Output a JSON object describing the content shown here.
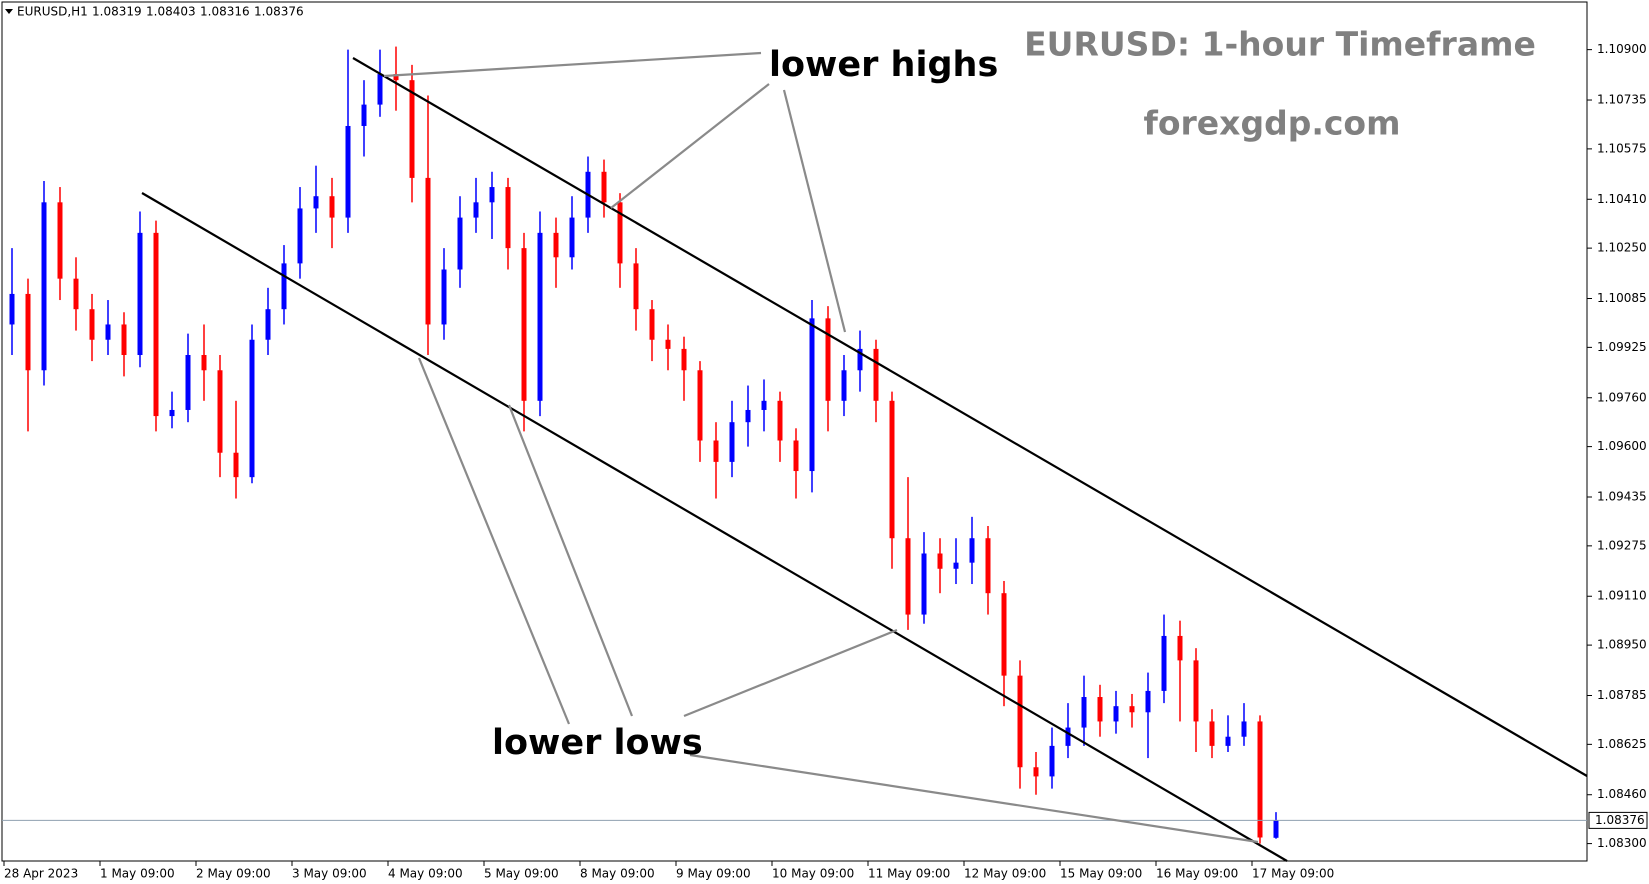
{
  "chart_data": {
    "type": "candlestick",
    "symbol": "EURUSD,H1",
    "title": "EURUSD: 1-hour Timeframe",
    "subtitle": "forexgdp.com",
    "annotations": [
      "lower highs",
      "lower lows"
    ],
    "categories": [
      "28 Apr 2023",
      null,
      null,
      null,
      null,
      null,
      "1 May 09:00",
      null,
      null,
      null,
      null,
      null,
      "2 May 09:00",
      null,
      null,
      null,
      null,
      null,
      "3 May 09:00",
      null,
      null,
      null,
      null,
      null,
      "4 May 09:00",
      null,
      null,
      null,
      null,
      null,
      "5 May 09:00",
      null,
      null,
      null,
      null,
      null,
      "8 May 09:00",
      null,
      null,
      null,
      null,
      null,
      "9 May 09:00",
      null,
      null,
      null,
      null,
      null,
      "10 May 09:00",
      null,
      null,
      null,
      null,
      null,
      "11 May 09:00",
      null,
      null,
      null,
      null,
      null,
      "12 May 09:00",
      null,
      null,
      null,
      null,
      null,
      "15 May 09:00",
      null,
      null,
      null,
      null,
      null,
      "16 May 09:00",
      null,
      null,
      null,
      null,
      null,
      "17 May 09:00",
      null
    ],
    "open": [
      1.1,
      1.101,
      1.0985,
      1.104,
      1.1015,
      1.1005,
      1.0995,
      1.1,
      1.099,
      1.103,
      1.097,
      1.0972,
      1.099,
      1.0985,
      1.0958,
      1.095,
      1.0995,
      1.1005,
      1.102,
      1.1038,
      1.1042,
      1.1035,
      1.1065,
      1.1072,
      1.1082,
      1.108,
      1.1048,
      1.1,
      1.1018,
      1.1035,
      1.104,
      1.1045,
      1.1025,
      1.0975,
      1.103,
      1.1022,
      1.1035,
      1.105,
      1.104,
      1.102,
      1.1005,
      1.0995,
      1.0992,
      1.0985,
      1.0962,
      1.0955,
      1.0968,
      1.0972,
      1.0975,
      1.0962,
      1.0952,
      1.1002,
      1.0975,
      1.0985,
      1.0992,
      1.0975,
      1.093,
      1.0905,
      1.0925,
      1.092,
      1.0922,
      1.093,
      1.0912,
      1.0885,
      1.0855,
      1.0852,
      1.0862,
      1.0868,
      1.0878,
      1.087,
      1.0875,
      1.0873,
      1.088,
      1.0898,
      1.089,
      1.087,
      1.0862,
      1.0865,
      1.087,
      1.08319
    ],
    "high": [
      1.1025,
      1.1015,
      1.1047,
      1.1045,
      1.1022,
      1.101,
      1.1008,
      1.1004,
      1.1037,
      1.1034,
      1.0978,
      1.0997,
      1.1,
      1.099,
      1.0975,
      1.1,
      1.1012,
      1.1026,
      1.1045,
      1.1052,
      1.1048,
      1.109,
      1.108,
      1.109,
      1.1091,
      1.1085,
      1.1075,
      1.1025,
      1.1042,
      1.1048,
      1.105,
      1.1048,
      1.103,
      1.1037,
      1.1035,
      1.1042,
      1.1055,
      1.1054,
      1.1043,
      1.1025,
      1.1008,
      1.1,
      1.0996,
      1.0988,
      1.0968,
      1.0975,
      1.098,
      1.0982,
      1.0978,
      1.0966,
      1.1008,
      1.1006,
      1.099,
      1.0998,
      1.0995,
      1.0978,
      1.095,
      1.0932,
      1.093,
      1.093,
      1.0937,
      1.0934,
      1.0916,
      1.089,
      1.086,
      1.0868,
      1.0876,
      1.0885,
      1.0882,
      1.088,
      1.0879,
      1.0886,
      1.0905,
      1.0903,
      1.0894,
      1.0874,
      1.0872,
      1.0876,
      1.0872,
      1.08403
    ],
    "low": [
      1.099,
      1.0965,
      1.098,
      1.1008,
      1.0998,
      1.0988,
      1.099,
      1.0983,
      1.0986,
      1.0965,
      1.0966,
      1.0968,
      1.0975,
      1.095,
      1.0943,
      1.0948,
      1.099,
      1.1,
      1.1015,
      1.103,
      1.1025,
      1.103,
      1.1055,
      1.1068,
      1.107,
      1.104,
      1.099,
      1.0995,
      1.1012,
      1.103,
      1.1028,
      1.1018,
      1.0965,
      1.097,
      1.1012,
      1.1018,
      1.103,
      1.1035,
      1.1012,
      1.0998,
      1.0988,
      1.0985,
      1.0975,
      1.0955,
      1.0943,
      1.095,
      1.096,
      1.0965,
      1.0955,
      1.0943,
      1.0945,
      1.0965,
      1.097,
      1.0978,
      1.0968,
      1.092,
      1.09,
      1.0902,
      1.0912,
      1.0915,
      1.0915,
      1.0905,
      1.0875,
      1.0848,
      1.0846,
      1.0848,
      1.0858,
      1.0862,
      1.0865,
      1.0866,
      1.0868,
      1.0858,
      1.0876,
      1.087,
      1.086,
      1.0858,
      1.086,
      1.0862,
      1.083,
      1.08316
    ],
    "close": [
      1.101,
      1.0985,
      1.104,
      1.1015,
      1.1005,
      1.0995,
      1.1,
      1.099,
      1.103,
      1.097,
      1.0972,
      1.099,
      1.0985,
      1.0958,
      1.095,
      1.0995,
      1.1005,
      1.102,
      1.1038,
      1.1042,
      1.1035,
      1.1065,
      1.1072,
      1.1082,
      1.108,
      1.1048,
      1.1,
      1.1018,
      1.1035,
      1.104,
      1.1045,
      1.1025,
      1.0975,
      1.103,
      1.1022,
      1.1035,
      1.105,
      1.104,
      1.102,
      1.1005,
      1.0995,
      1.0992,
      1.0985,
      1.0962,
      1.0955,
      1.0968,
      1.0972,
      1.0975,
      1.0962,
      1.0952,
      1.1002,
      1.0975,
      1.0985,
      1.0992,
      1.0975,
      1.093,
      1.0905,
      1.0925,
      1.092,
      1.0922,
      1.093,
      1.0912,
      1.0885,
      1.0855,
      1.0852,
      1.0862,
      1.0868,
      1.0878,
      1.087,
      1.0875,
      1.0873,
      1.088,
      1.0898,
      1.089,
      1.087,
      1.0862,
      1.0865,
      1.087,
      1.0832,
      1.08376
    ],
    "up_color": "#0000ff",
    "down_color": "#ff0000",
    "current_price": 1.08376,
    "ylim": [
      1.08243,
      1.11056
    ],
    "yticks": [
      {
        "value": 1.109,
        "label": "1.10900"
      },
      {
        "value": 1.10735,
        "label": "1.10735"
      },
      {
        "value": 1.10575,
        "label": "1.10575"
      },
      {
        "value": 1.1041,
        "label": "1.10410"
      },
      {
        "value": 1.1025,
        "label": "1.10250"
      },
      {
        "value": 1.10085,
        "label": "1.10085"
      },
      {
        "value": 1.09925,
        "label": "1.09925"
      },
      {
        "value": 1.0976,
        "label": "1.09760"
      },
      {
        "value": 1.096,
        "label": "1.09600"
      },
      {
        "value": 1.09435,
        "label": "1.09435"
      },
      {
        "value": 1.09275,
        "label": "1.09275"
      },
      {
        "value": 1.0911,
        "label": "1.09110"
      },
      {
        "value": 1.0895,
        "label": "1.08950"
      },
      {
        "value": 1.08785,
        "label": "1.08785"
      },
      {
        "value": 1.08625,
        "label": "1.08625"
      },
      {
        "value": 1.0846,
        "label": "1.08460"
      },
      {
        "value": 1.083,
        "label": "1.08300"
      }
    ]
  }
}
